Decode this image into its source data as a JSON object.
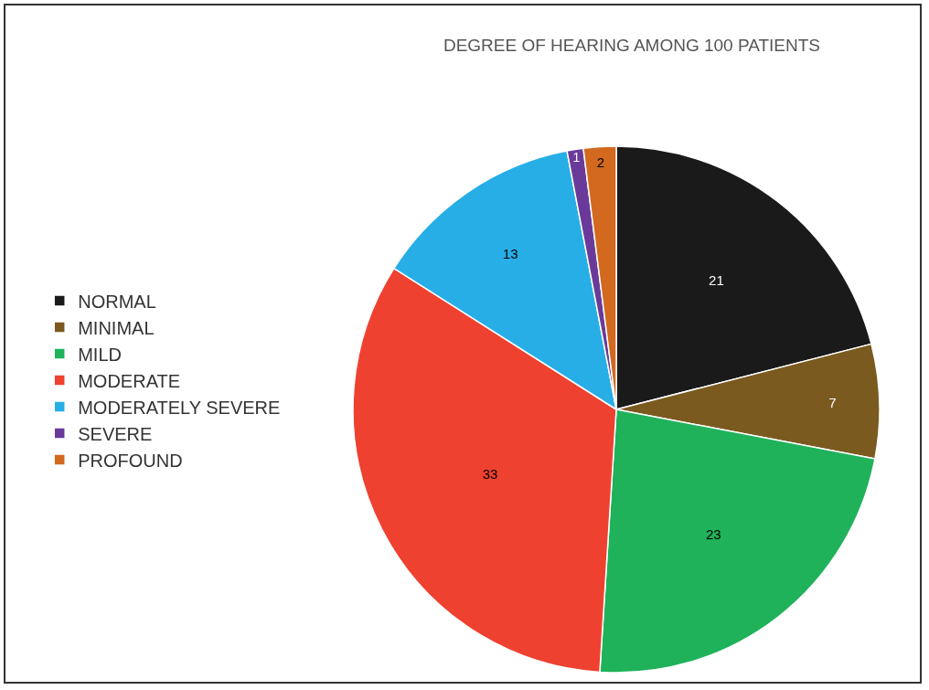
{
  "chart_data": {
    "type": "pie",
    "title": "DEGREE OF HEARING AMONG 100 PATIENTS",
    "categories": [
      "NORMAL",
      "MINIMAL",
      "MILD",
      "MODERATE",
      "MODERATELY SEVERE",
      "SEVERE",
      "PROFOUND"
    ],
    "values": [
      21,
      7,
      23,
      33,
      13,
      1,
      2
    ],
    "colors": [
      "#1a1a1a",
      "#7a5a1f",
      "#1fb25a",
      "#ef4130",
      "#27aee6",
      "#6a3a9a",
      "#d2691e"
    ],
    "data_labels": true,
    "legend": "left"
  }
}
